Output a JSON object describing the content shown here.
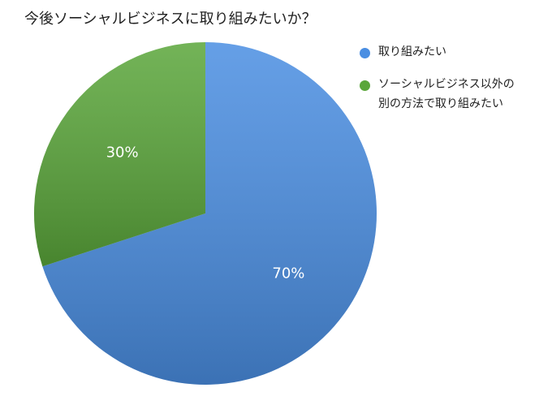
{
  "chart_data": {
    "type": "pie",
    "title": "今後ソーシャルビジネスに取り組みたいか？",
    "categories": [
      "取り組みたい",
      "ソーシャルビジネス以外の別の方法で取り組みたい"
    ],
    "values": [
      70,
      30
    ],
    "value_labels": [
      "70%",
      "30%"
    ],
    "colors": [
      "#4a8ee2",
      "#5aa63a"
    ],
    "legend": "right"
  }
}
